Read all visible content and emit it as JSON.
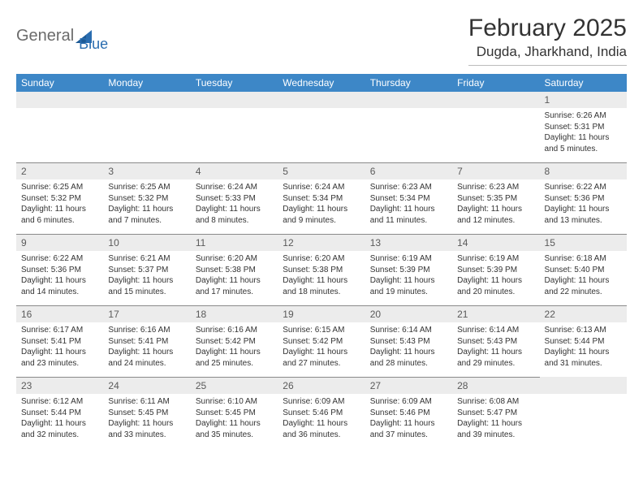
{
  "logo": {
    "text1": "General",
    "text2": "Blue"
  },
  "title": "February 2025",
  "location": "Dugda, Jharkhand, India",
  "colors": {
    "header_bg": "#3d87c7",
    "header_fg": "#ffffff",
    "daynum_bg": "#ececec",
    "daynum_fg": "#5a5a5a",
    "body_fg": "#333333",
    "logo_gray": "#6b6b6b",
    "logo_blue": "#2a6db0",
    "divider": "#bcbcbc",
    "row_divider": "#8a8a8a"
  },
  "typography": {
    "title_fontsize": 30,
    "location_fontsize": 17,
    "weekday_fontsize": 12,
    "daynum_fontsize": 12,
    "body_fontsize": 10
  },
  "weekdays": [
    "Sunday",
    "Monday",
    "Tuesday",
    "Wednesday",
    "Thursday",
    "Friday",
    "Saturday"
  ],
  "layout": {
    "first_weekday_index": 6,
    "days_in_month": 28
  },
  "days": [
    {
      "n": 1,
      "sunrise": "6:26 AM",
      "sunset": "5:31 PM",
      "daylight": "11 hours and 5 minutes."
    },
    {
      "n": 2,
      "sunrise": "6:25 AM",
      "sunset": "5:32 PM",
      "daylight": "11 hours and 6 minutes."
    },
    {
      "n": 3,
      "sunrise": "6:25 AM",
      "sunset": "5:32 PM",
      "daylight": "11 hours and 7 minutes."
    },
    {
      "n": 4,
      "sunrise": "6:24 AM",
      "sunset": "5:33 PM",
      "daylight": "11 hours and 8 minutes."
    },
    {
      "n": 5,
      "sunrise": "6:24 AM",
      "sunset": "5:34 PM",
      "daylight": "11 hours and 9 minutes."
    },
    {
      "n": 6,
      "sunrise": "6:23 AM",
      "sunset": "5:34 PM",
      "daylight": "11 hours and 11 minutes."
    },
    {
      "n": 7,
      "sunrise": "6:23 AM",
      "sunset": "5:35 PM",
      "daylight": "11 hours and 12 minutes."
    },
    {
      "n": 8,
      "sunrise": "6:22 AM",
      "sunset": "5:36 PM",
      "daylight": "11 hours and 13 minutes."
    },
    {
      "n": 9,
      "sunrise": "6:22 AM",
      "sunset": "5:36 PM",
      "daylight": "11 hours and 14 minutes."
    },
    {
      "n": 10,
      "sunrise": "6:21 AM",
      "sunset": "5:37 PM",
      "daylight": "11 hours and 15 minutes."
    },
    {
      "n": 11,
      "sunrise": "6:20 AM",
      "sunset": "5:38 PM",
      "daylight": "11 hours and 17 minutes."
    },
    {
      "n": 12,
      "sunrise": "6:20 AM",
      "sunset": "5:38 PM",
      "daylight": "11 hours and 18 minutes."
    },
    {
      "n": 13,
      "sunrise": "6:19 AM",
      "sunset": "5:39 PM",
      "daylight": "11 hours and 19 minutes."
    },
    {
      "n": 14,
      "sunrise": "6:19 AM",
      "sunset": "5:39 PM",
      "daylight": "11 hours and 20 minutes."
    },
    {
      "n": 15,
      "sunrise": "6:18 AM",
      "sunset": "5:40 PM",
      "daylight": "11 hours and 22 minutes."
    },
    {
      "n": 16,
      "sunrise": "6:17 AM",
      "sunset": "5:41 PM",
      "daylight": "11 hours and 23 minutes."
    },
    {
      "n": 17,
      "sunrise": "6:16 AM",
      "sunset": "5:41 PM",
      "daylight": "11 hours and 24 minutes."
    },
    {
      "n": 18,
      "sunrise": "6:16 AM",
      "sunset": "5:42 PM",
      "daylight": "11 hours and 25 minutes."
    },
    {
      "n": 19,
      "sunrise": "6:15 AM",
      "sunset": "5:42 PM",
      "daylight": "11 hours and 27 minutes."
    },
    {
      "n": 20,
      "sunrise": "6:14 AM",
      "sunset": "5:43 PM",
      "daylight": "11 hours and 28 minutes."
    },
    {
      "n": 21,
      "sunrise": "6:14 AM",
      "sunset": "5:43 PM",
      "daylight": "11 hours and 29 minutes."
    },
    {
      "n": 22,
      "sunrise": "6:13 AM",
      "sunset": "5:44 PM",
      "daylight": "11 hours and 31 minutes."
    },
    {
      "n": 23,
      "sunrise": "6:12 AM",
      "sunset": "5:44 PM",
      "daylight": "11 hours and 32 minutes."
    },
    {
      "n": 24,
      "sunrise": "6:11 AM",
      "sunset": "5:45 PM",
      "daylight": "11 hours and 33 minutes."
    },
    {
      "n": 25,
      "sunrise": "6:10 AM",
      "sunset": "5:45 PM",
      "daylight": "11 hours and 35 minutes."
    },
    {
      "n": 26,
      "sunrise": "6:09 AM",
      "sunset": "5:46 PM",
      "daylight": "11 hours and 36 minutes."
    },
    {
      "n": 27,
      "sunrise": "6:09 AM",
      "sunset": "5:46 PM",
      "daylight": "11 hours and 37 minutes."
    },
    {
      "n": 28,
      "sunrise": "6:08 AM",
      "sunset": "5:47 PM",
      "daylight": "11 hours and 39 minutes."
    }
  ],
  "labels": {
    "sunrise": "Sunrise:",
    "sunset": "Sunset:",
    "daylight": "Daylight:"
  }
}
